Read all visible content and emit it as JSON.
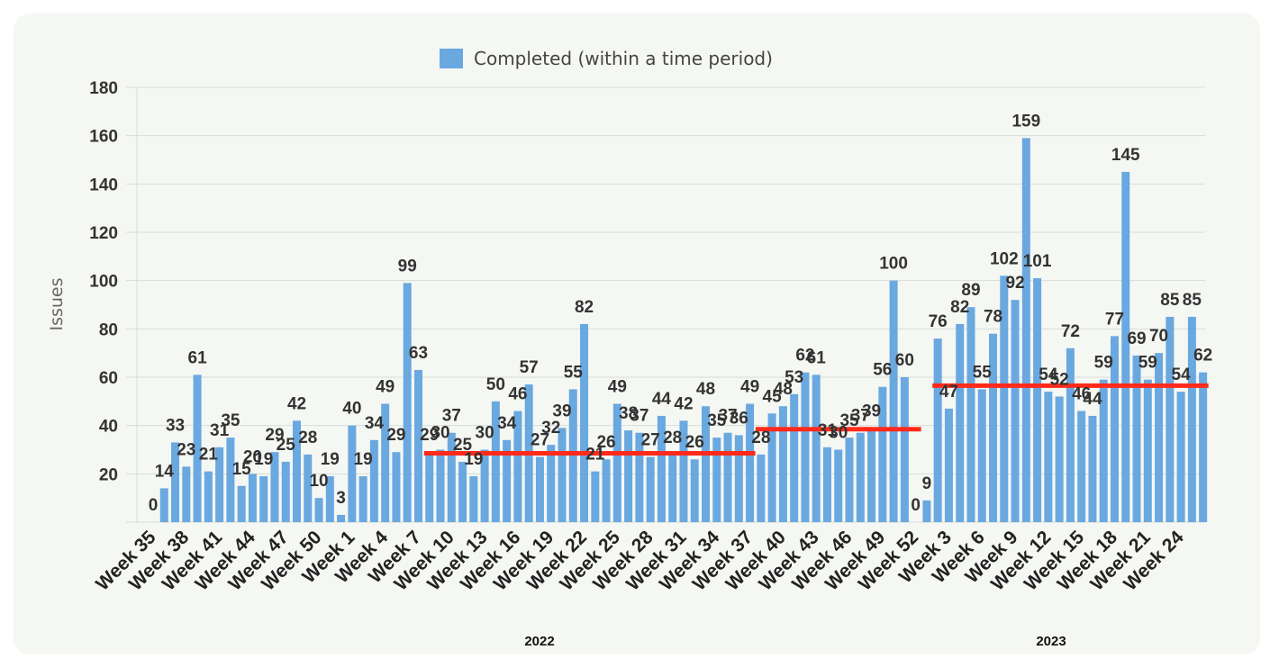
{
  "chart_data": {
    "type": "bar",
    "series": [
      {
        "name": "Completed (within a time period)",
        "color": "#6aa8e0",
        "values": [
          0,
          14,
          33,
          23,
          61,
          21,
          31,
          35,
          15,
          20,
          19,
          29,
          25,
          42,
          28,
          10,
          19,
          3,
          40,
          19,
          34,
          49,
          29,
          99,
          63,
          29,
          30,
          37,
          25,
          19,
          30,
          50,
          34,
          46,
          57,
          27,
          32,
          39,
          55,
          82,
          21,
          26,
          49,
          38,
          37,
          27,
          44,
          28,
          42,
          26,
          48,
          35,
          37,
          36,
          49,
          28,
          45,
          48,
          53,
          62,
          61,
          31,
          30,
          35,
          37,
          39,
          56,
          100,
          60,
          0,
          9,
          76,
          47,
          82,
          89,
          55,
          78,
          102,
          92,
          159,
          101,
          54,
          52,
          72,
          46,
          44,
          59,
          77,
          145,
          69,
          59,
          70,
          85,
          54,
          85,
          62
        ]
      }
    ],
    "x_tick_labels": [
      "Week 35",
      "Week 38",
      "Week 41",
      "Week 44",
      "Week 47",
      "Week 50",
      "Week 1",
      "Week 4",
      "Week 7",
      "Week 10",
      "Week 13",
      "Week 16",
      "Week 19",
      "Week 22",
      "Week 25",
      "Week 28",
      "Week 31",
      "Week 34",
      "Week 37",
      "Week 40",
      "Week 43",
      "Week 46",
      "Week 49",
      "Week 52",
      "Week 3",
      "Week 6",
      "Week 9",
      "Week 12",
      "Week 15",
      "Week 18",
      "Week 21",
      "Week 24"
    ],
    "x_tick_step": 3,
    "year_labels": [
      "2022",
      "2023"
    ],
    "ylabel": "Issues",
    "xlabel": "",
    "ylim": [
      0,
      180
    ],
    "yticks": [
      20,
      40,
      60,
      80,
      100,
      120,
      140,
      160,
      180
    ],
    "grid": true,
    "legend_position": "top-center",
    "average_lines": [
      {
        "from_index": 25,
        "to_index": 54,
        "value": 28.5
      },
      {
        "from_index": 55,
        "to_index": 69,
        "value": 38.5
      },
      {
        "from_index": 71,
        "to_index": 95,
        "value": 56.5
      }
    ],
    "average_line_color": "#ff2a1a",
    "grid_color": "#d8dcd6"
  }
}
